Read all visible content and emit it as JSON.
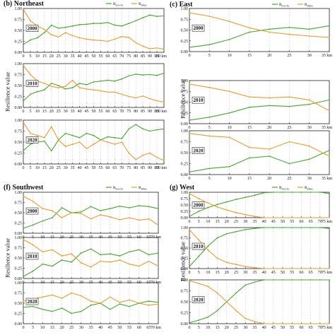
{
  "figure": {
    "ylabel": "Resilience value"
  },
  "colors": {
    "green": "#43a82c",
    "orange": "#ec9a2a",
    "grid": "#9a9a9a"
  },
  "chart_data": [
    {
      "id": "b",
      "type": "line",
      "title": "(b) Northeast",
      "legend": [
        "R_eco-lu",
        "R_alteu"
      ],
      "x_tick_labels": [
        "0",
        "5",
        "10",
        "15",
        "20",
        "25",
        "30",
        "35",
        "40",
        "45",
        "50",
        "55",
        "60",
        "65",
        "70",
        "75",
        "80",
        "85",
        "90",
        "95",
        "100 km"
      ],
      "y_tick_labels": [
        "0.00",
        "0.25",
        "0.50",
        "0.75",
        "1.00"
      ],
      "ylim": [
        0,
        1
      ],
      "x": [
        0,
        5,
        10,
        15,
        20,
        25,
        30,
        35,
        40,
        45,
        50,
        55,
        60,
        65,
        70,
        75,
        80,
        85,
        90,
        95,
        100
      ],
      "rows": [
        {
          "year": "2000",
          "green": [
            0.18,
            0.28,
            0.33,
            0.45,
            0.62,
            0.55,
            0.57,
            0.6,
            0.63,
            0.64,
            0.66,
            0.66,
            0.68,
            0.62,
            0.6,
            0.66,
            0.72,
            0.79,
            0.85,
            0.82,
            0.83
          ],
          "orange": [
            0.98,
            0.72,
            0.6,
            0.52,
            0.4,
            0.35,
            0.45,
            0.38,
            0.33,
            0.3,
            0.28,
            0.27,
            0.25,
            0.3,
            0.36,
            0.34,
            0.22,
            0.14,
            0.08,
            0.1,
            0.07
          ]
        },
        {
          "year": "2010",
          "green": [
            0.15,
            0.3,
            0.36,
            0.4,
            0.55,
            0.5,
            0.42,
            0.45,
            0.55,
            0.52,
            0.58,
            0.6,
            0.62,
            0.6,
            0.65,
            0.72,
            0.76,
            0.74,
            0.75,
            0.73,
            0.78
          ],
          "orange": [
            0.96,
            0.75,
            0.6,
            0.55,
            0.48,
            0.45,
            0.48,
            0.62,
            0.45,
            0.42,
            0.4,
            0.38,
            0.35,
            0.35,
            0.3,
            0.25,
            0.22,
            0.26,
            0.2,
            0.15,
            0.12
          ]
        },
        {
          "year": "2020",
          "green": [
            0.3,
            0.45,
            0.5,
            0.52,
            0.3,
            0.55,
            0.7,
            0.65,
            0.6,
            0.7,
            0.65,
            0.55,
            0.62,
            0.6,
            0.58,
            0.8,
            0.9,
            0.8,
            0.75,
            0.78,
            0.8
          ],
          "orange": [
            0.95,
            0.7,
            0.65,
            0.6,
            0.85,
            0.55,
            0.4,
            0.45,
            0.5,
            0.35,
            0.45,
            0.55,
            0.5,
            0.45,
            0.5,
            0.25,
            0.1,
            0.2,
            0.25,
            0.15,
            0.08
          ]
        }
      ]
    },
    {
      "id": "c",
      "type": "line",
      "title": "(c) East",
      "legend": [
        "R_eco-lu",
        "R_alteu"
      ],
      "x_tick_labels": [
        "0",
        "5",
        "10",
        "15",
        "20",
        "25",
        "30",
        "35 km"
      ],
      "y_tick_labels": [
        "0.00",
        "0.25",
        "0.50",
        "0.75",
        "1.00"
      ],
      "ylim": [
        0,
        1
      ],
      "x": [
        0,
        5,
        10,
        15,
        20,
        25,
        30,
        35
      ],
      "rows": [
        {
          "year": "2000",
          "green": [
            0.1,
            0.16,
            0.28,
            0.45,
            0.52,
            0.56,
            0.52,
            0.6
          ],
          "orange": [
            0.9,
            0.82,
            0.7,
            0.55,
            0.45,
            0.4,
            0.36,
            0.33
          ]
        },
        {
          "year": "2010",
          "green": [
            0.08,
            0.15,
            0.25,
            0.38,
            0.42,
            0.4,
            0.45,
            0.55
          ],
          "orange": [
            0.92,
            0.84,
            0.75,
            0.62,
            0.6,
            0.62,
            0.55,
            0.3
          ]
        },
        {
          "year": "2020",
          "green": [
            0.06,
            0.14,
            0.18,
            0.38,
            0.42,
            0.25,
            0.35,
            0.55
          ],
          "orange": [
            0.94,
            0.88,
            0.85,
            0.62,
            0.58,
            0.75,
            0.65,
            0.42
          ]
        }
      ]
    },
    {
      "id": "f",
      "type": "line",
      "title": "(f) Southwest",
      "legend": [
        "R_eco-lu",
        "R_alteu"
      ],
      "x_tick_labels": [
        "0",
        "5",
        "10",
        "15",
        "20",
        "25",
        "30",
        "35",
        "40",
        "45",
        "50",
        "55",
        "60",
        "65",
        "70 km"
      ],
      "y_tick_labels": [
        "0.00",
        "0.25",
        "0.50",
        "0.75",
        "1.00"
      ],
      "ylim": [
        0,
        1
      ],
      "x": [
        0,
        5,
        10,
        15,
        20,
        25,
        30,
        35,
        40,
        45,
        50,
        55,
        60,
        65,
        70
      ],
      "rows": [
        {
          "year": "2000",
          "green": [
            0.12,
            0.2,
            0.3,
            0.38,
            0.62,
            0.5,
            0.52,
            0.65,
            0.55,
            0.6,
            0.66,
            0.62,
            0.67,
            0.65,
            0.6
          ],
          "orange": [
            0.9,
            0.78,
            0.6,
            0.55,
            0.38,
            0.5,
            0.48,
            0.35,
            0.45,
            0.4,
            0.33,
            0.38,
            0.32,
            0.35,
            0.2
          ]
        },
        {
          "year": "2010",
          "green": [
            0.05,
            0.18,
            0.35,
            0.3,
            0.45,
            0.4,
            0.62,
            0.72,
            0.58,
            0.6,
            0.55,
            0.65,
            0.7,
            0.58,
            0.62
          ],
          "orange": [
            0.95,
            0.82,
            0.65,
            0.7,
            0.55,
            0.6,
            0.38,
            0.28,
            0.42,
            0.4,
            0.45,
            0.35,
            0.3,
            0.42,
            0.3
          ]
        },
        {
          "year": "2020",
          "green": [
            0.4,
            0.42,
            0.35,
            0.3,
            0.38,
            0.25,
            0.3,
            0.45,
            0.5,
            0.35,
            0.48,
            0.42,
            0.5,
            0.55,
            0.52
          ],
          "orange": [
            0.55,
            0.6,
            0.65,
            0.7,
            0.62,
            0.75,
            0.68,
            0.55,
            0.5,
            0.65,
            0.52,
            0.58,
            0.5,
            0.45,
            0.48
          ]
        }
      ]
    },
    {
      "id": "g",
      "type": "line",
      "title": "(g) West",
      "legend": [
        "R_eco-lu",
        "R_alteu"
      ],
      "x_tick_labels": [
        "0",
        "5",
        "10",
        "15",
        "20",
        "25",
        "30",
        "35",
        "40",
        "45",
        "50",
        "55",
        "60",
        "65",
        "70",
        "75 km"
      ],
      "y_tick_labels": [
        "0.00",
        "0.25",
        "0.50",
        "0.75",
        "1.00"
      ],
      "ylim": [
        0,
        1
      ],
      "x": [
        0,
        5,
        10,
        15,
        20,
        25,
        30,
        35,
        40,
        45,
        50,
        55,
        60,
        65,
        70,
        75
      ],
      "rows": [
        {
          "year": "2000",
          "green": [
            0.05,
            0.25,
            0.4,
            0.52,
            0.62,
            0.72,
            0.8,
            0.88,
            0.98,
            1.0,
            1.0,
            1.0,
            1.0,
            1.0,
            1.0,
            0.95
          ],
          "orange": [
            0.95,
            0.75,
            0.58,
            0.42,
            0.3,
            0.2,
            0.12,
            0.05,
            0.0,
            0.0,
            0.0,
            0.0,
            0.0,
            0.0,
            0.0,
            0.0
          ]
        },
        {
          "year": "2010",
          "green": [
            0.05,
            0.3,
            0.55,
            0.75,
            0.85,
            0.9,
            0.95,
            0.98,
            1.0,
            1.0,
            1.0,
            1.0,
            1.0,
            1.0,
            1.0,
            0.98
          ],
          "orange": [
            0.95,
            0.7,
            0.45,
            0.25,
            0.15,
            0.1,
            0.05,
            0.02,
            0.0,
            0.0,
            0.0,
            0.0,
            0.0,
            0.0,
            0.0,
            0.0
          ]
        },
        {
          "year": "2020",
          "green": [
            0.02,
            0.08,
            0.15,
            0.3,
            0.5,
            0.7,
            0.88,
            0.95,
            1.0,
            1.0,
            1.0,
            1.0,
            1.0,
            1.0,
            1.0,
            1.0
          ],
          "orange": [
            0.98,
            0.92,
            0.85,
            0.7,
            0.5,
            0.3,
            0.12,
            0.05,
            0.0,
            0.0,
            0.0,
            0.0,
            0.0,
            0.0,
            0.0,
            0.0
          ]
        }
      ]
    }
  ]
}
